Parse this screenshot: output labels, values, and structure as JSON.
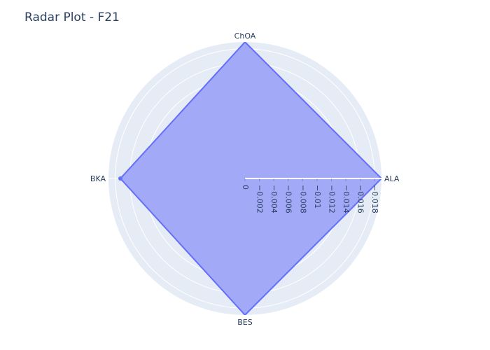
{
  "chart_data": {
    "type": "radar",
    "title": "Radar Plot - F21",
    "axes": [
      "ALA",
      "ChOA",
      "BKA",
      "BES"
    ],
    "series": [
      {
        "name": "F21",
        "values": [
          0.01895,
          0.01895,
          0.0173,
          0.01895
        ],
        "color": "#636efa"
      }
    ],
    "radial_range": [
      0,
      0.01895
    ],
    "radial_ticks": [
      0,
      -0.002,
      -0.004,
      -0.006,
      -0.008,
      -0.01,
      -0.012,
      -0.014,
      -0.016,
      -0.018
    ],
    "radial_tick_labels": [
      "0",
      "−0.002",
      "−0.004",
      "−0.006",
      "−0.008",
      "−0.01",
      "−0.012",
      "−0.014",
      "−0.016",
      "−0.018"
    ],
    "background_color": "#e5ecf6",
    "fill_color": "#a2a9f7"
  }
}
